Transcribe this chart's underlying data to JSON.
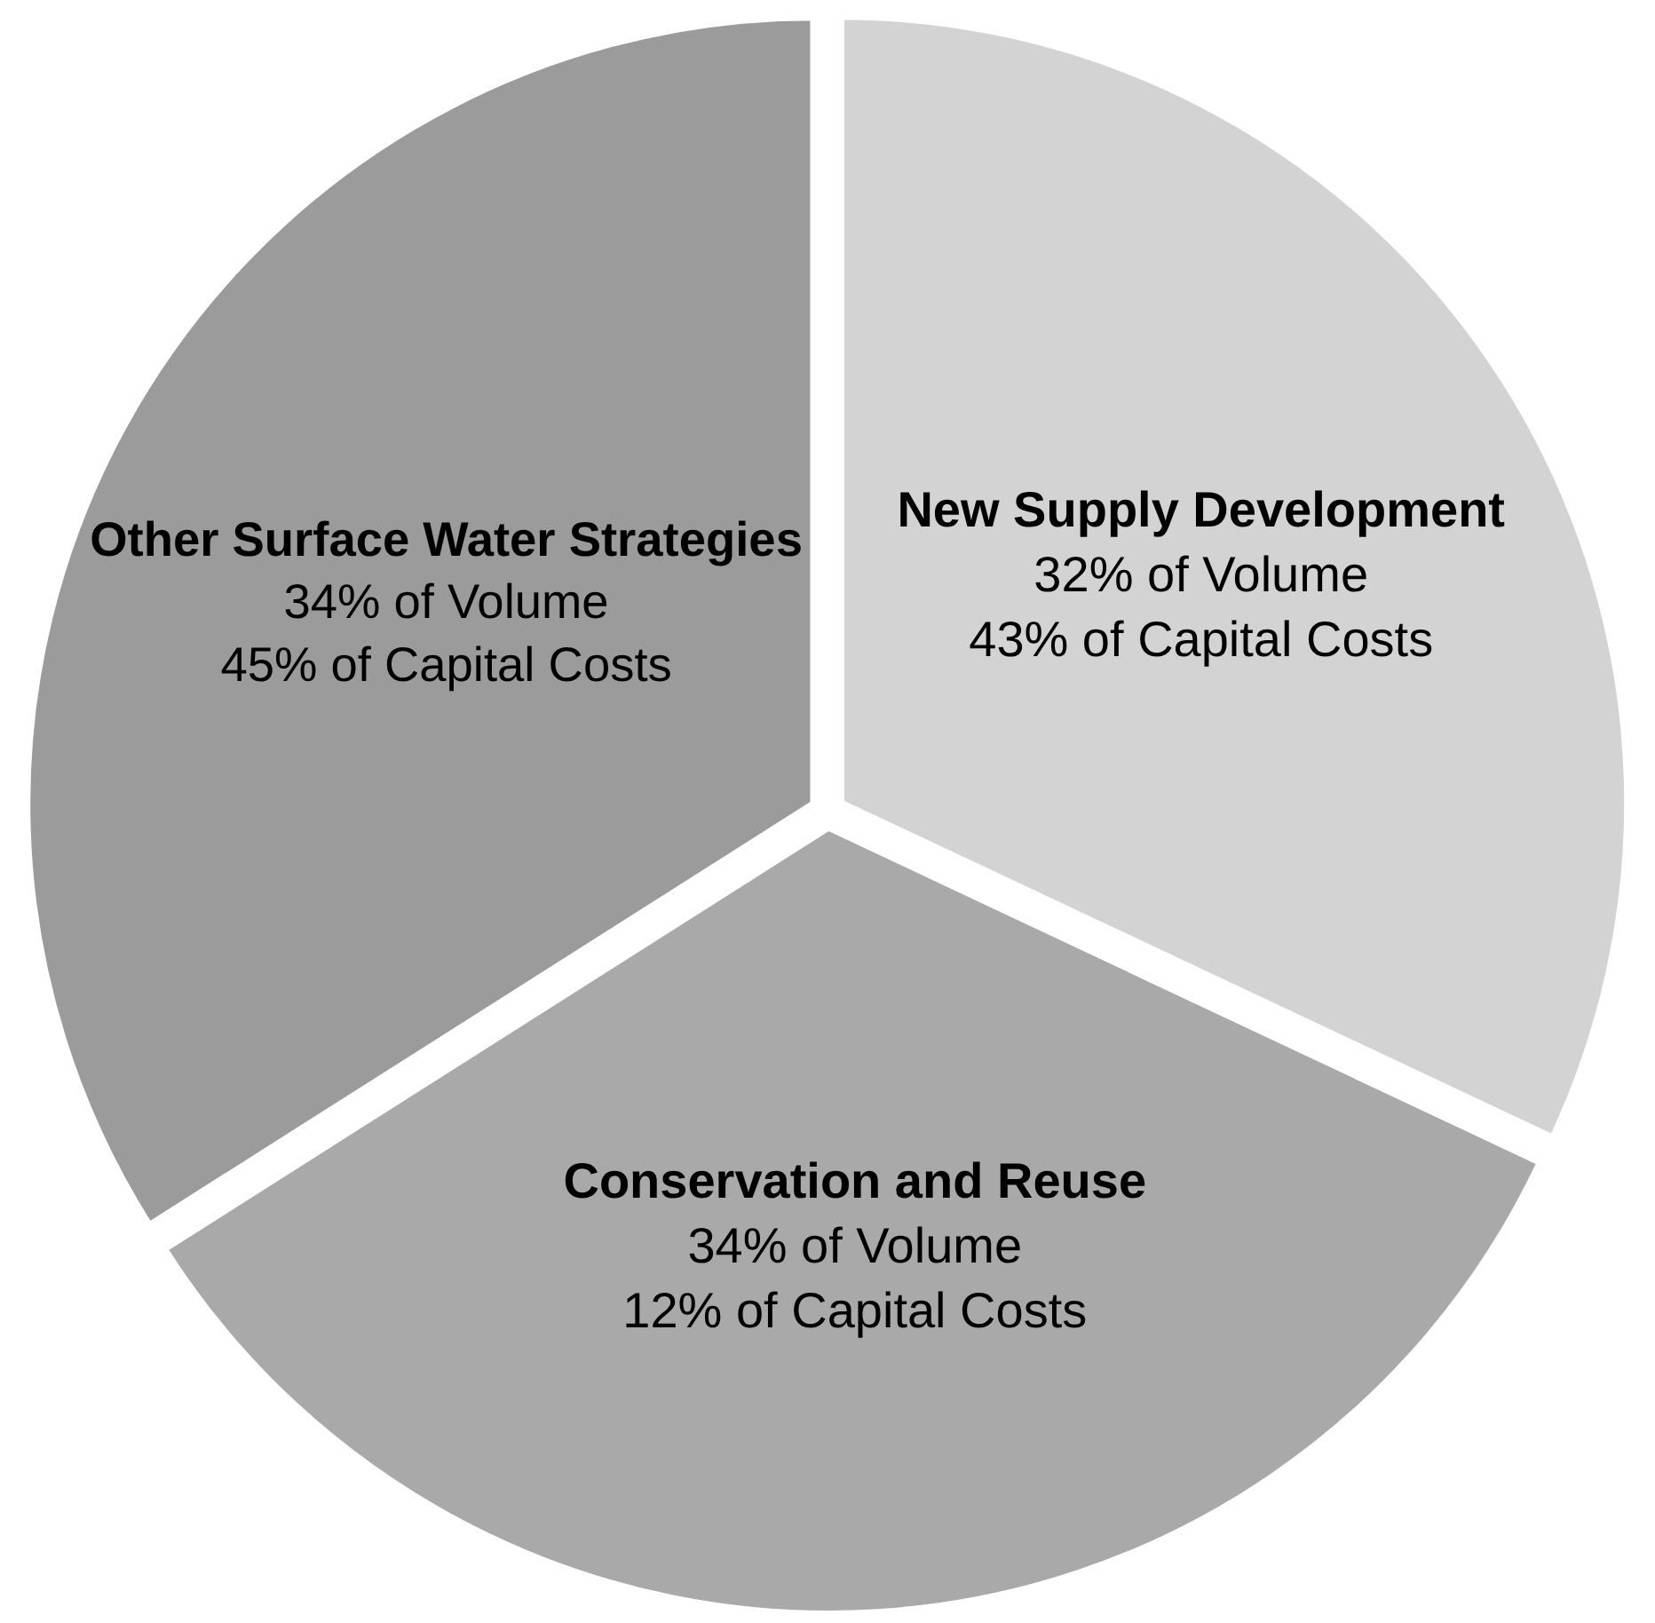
{
  "chart_data": {
    "type": "pie",
    "categories": [
      "New Supply Development",
      "Conservation and Reuse",
      "Other Surface Water Strategies"
    ],
    "values": [
      32,
      34,
      34
    ],
    "colors": [
      "#d3d3d3",
      "#a9a9a9",
      "#9b9b9b"
    ],
    "value_labels": [
      "32% of Volume\n43% of Capital Costs",
      "34% of Volume\n12% of Capital Costs",
      "34% of Volume\n45% of Capital Costs"
    ],
    "legend": false
  }
}
